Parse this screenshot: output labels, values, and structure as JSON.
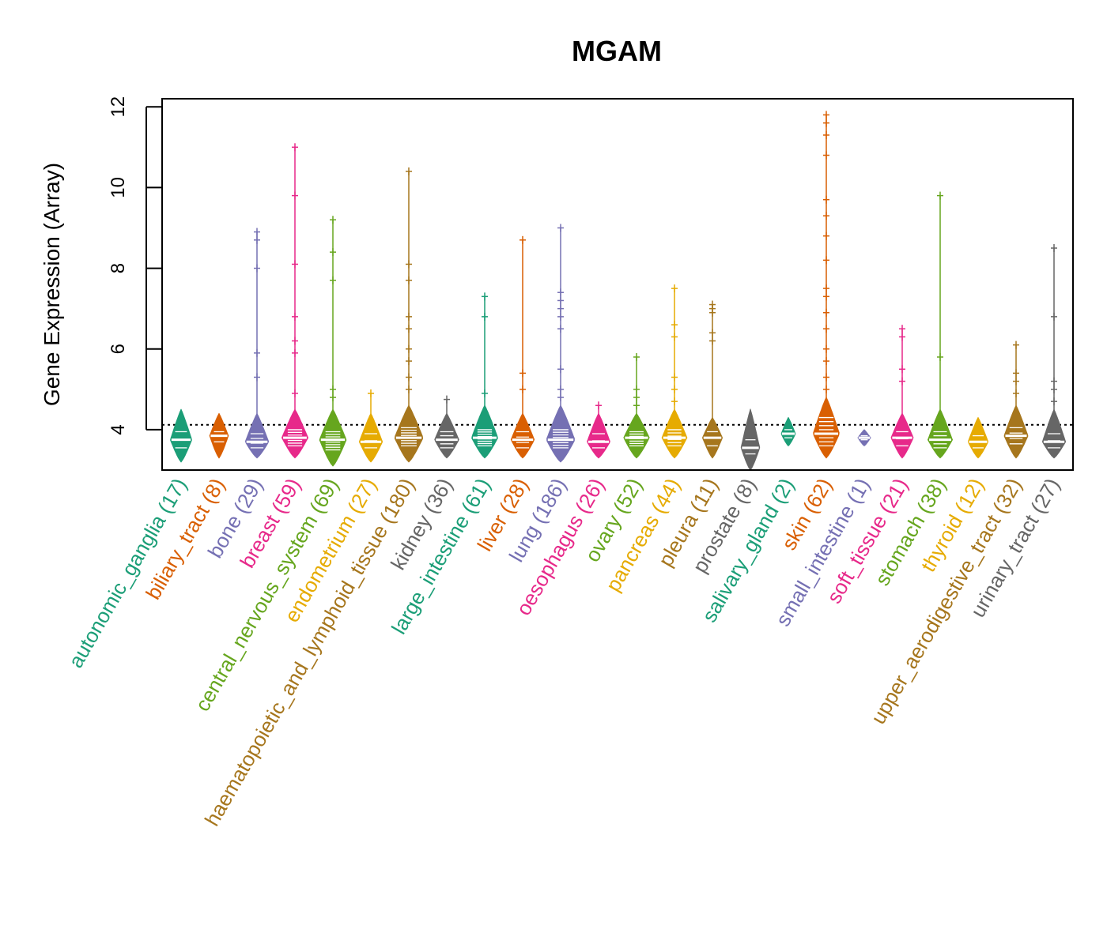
{
  "chart_data": {
    "type": "beeswarm-violin",
    "title": "MGAM",
    "xlabel": "",
    "ylabel": "Gene Expression (Array)",
    "ylim": [
      3.0,
      12.2
    ],
    "yticks": [
      4,
      6,
      8,
      10,
      12
    ],
    "reference_line": 4.12,
    "categories": [
      {
        "name": "autonomic_ganglia",
        "n": 17,
        "label": "autonomic_ganglia (17)",
        "color": "#1b9e77",
        "median": 3.75,
        "q1": 3.55,
        "q3": 3.95,
        "min": 3.2,
        "max": 4.5,
        "outliers": []
      },
      {
        "name": "biliary_tract",
        "n": 8,
        "label": "biliary_tract (8)",
        "color": "#d95f02",
        "median": 3.85,
        "q1": 3.7,
        "q3": 3.95,
        "min": 3.3,
        "max": 4.4,
        "outliers": []
      },
      {
        "name": "bone",
        "n": 29,
        "label": "bone (29)",
        "color": "#7570b3",
        "median": 3.7,
        "q1": 3.55,
        "q3": 3.9,
        "min": 3.3,
        "max": 4.4,
        "outliers": [
          5.3,
          5.9,
          8.0,
          8.7,
          8.9
        ]
      },
      {
        "name": "breast",
        "n": 59,
        "label": "breast (59)",
        "color": "#e7298a",
        "median": 3.8,
        "q1": 3.6,
        "q3": 4.0,
        "min": 3.3,
        "max": 4.5,
        "outliers": [
          4.9,
          5.9,
          6.2,
          6.8,
          8.1,
          9.8,
          11.0
        ]
      },
      {
        "name": "central_nervous_system",
        "n": 69,
        "label": "central_nervous_system (69)",
        "color": "#66a61e",
        "median": 3.75,
        "q1": 3.5,
        "q3": 3.95,
        "min": 3.1,
        "max": 4.5,
        "outliers": [
          4.8,
          5.0,
          7.7,
          8.4,
          9.2
        ]
      },
      {
        "name": "endometrium",
        "n": 27,
        "label": "endometrium (27)",
        "color": "#e6ab02",
        "median": 3.7,
        "q1": 3.55,
        "q3": 3.9,
        "min": 3.2,
        "max": 4.4,
        "outliers": [
          4.9
        ]
      },
      {
        "name": "haematopoietic_and_lymphoid_tissue",
        "n": 180,
        "label": "haematopoietic_and_lymphoid_tissue (180)",
        "color": "#a6761d",
        "median": 3.8,
        "q1": 3.6,
        "q3": 4.05,
        "min": 3.2,
        "max": 4.6,
        "outliers": [
          5.0,
          5.3,
          5.7,
          6.0,
          6.5,
          6.8,
          7.7,
          8.1,
          10.4
        ]
      },
      {
        "name": "kidney",
        "n": 36,
        "label": "kidney (36)",
        "color": "#666666",
        "median": 3.75,
        "q1": 3.55,
        "q3": 3.95,
        "min": 3.3,
        "max": 4.4,
        "outliers": [
          4.75
        ]
      },
      {
        "name": "large_intestine",
        "n": 61,
        "label": "large_intestine (61)",
        "color": "#1b9e77",
        "median": 3.8,
        "q1": 3.6,
        "q3": 4.0,
        "min": 3.3,
        "max": 4.6,
        "outliers": [
          4.9,
          6.8,
          7.3
        ]
      },
      {
        "name": "liver",
        "n": 28,
        "label": "liver (28)",
        "color": "#d95f02",
        "median": 3.75,
        "q1": 3.55,
        "q3": 3.95,
        "min": 3.3,
        "max": 4.4,
        "outliers": [
          5.0,
          5.4,
          8.7
        ]
      },
      {
        "name": "lung",
        "n": 186,
        "label": "lung (186)",
        "color": "#7570b3",
        "median": 3.75,
        "q1": 3.55,
        "q3": 4.0,
        "min": 3.2,
        "max": 4.6,
        "outliers": [
          4.8,
          5.0,
          5.5,
          6.5,
          6.8,
          7.0,
          7.2,
          7.4,
          9.0
        ]
      },
      {
        "name": "oesophagus",
        "n": 26,
        "label": "oesophagus (26)",
        "color": "#e7298a",
        "median": 3.7,
        "q1": 3.55,
        "q3": 3.9,
        "min": 3.3,
        "max": 4.4,
        "outliers": [
          4.6
        ]
      },
      {
        "name": "ovary",
        "n": 52,
        "label": "ovary (52)",
        "color": "#66a61e",
        "median": 3.8,
        "q1": 3.6,
        "q3": 3.95,
        "min": 3.3,
        "max": 4.4,
        "outliers": [
          4.6,
          4.8,
          5.0,
          5.8
        ]
      },
      {
        "name": "pancreas",
        "n": 44,
        "label": "pancreas (44)",
        "color": "#e6ab02",
        "median": 3.8,
        "q1": 3.6,
        "q3": 4.0,
        "min": 3.3,
        "max": 4.5,
        "outliers": [
          4.7,
          5.0,
          5.3,
          6.3,
          6.6,
          7.5
        ]
      },
      {
        "name": "pleura",
        "n": 11,
        "label": "pleura (11)",
        "color": "#a6761d",
        "median": 3.8,
        "q1": 3.6,
        "q3": 3.95,
        "min": 3.3,
        "max": 4.3,
        "outliers": [
          6.2,
          6.4,
          6.9,
          7.0,
          7.1
        ]
      },
      {
        "name": "prostate",
        "n": 8,
        "label": "prostate (8)",
        "color": "#666666",
        "median": 3.55,
        "q1": 3.4,
        "q3": 3.75,
        "min": 3.0,
        "max": 4.5,
        "outliers": []
      },
      {
        "name": "salivary_gland",
        "n": 2,
        "label": "salivary_gland (2)",
        "color": "#1b9e77",
        "median": 3.9,
        "q1": 3.8,
        "q3": 4.0,
        "min": 3.6,
        "max": 4.3,
        "outliers": []
      },
      {
        "name": "skin",
        "n": 62,
        "label": "skin (62)",
        "color": "#d95f02",
        "median": 3.9,
        "q1": 3.6,
        "q3": 4.3,
        "min": 3.3,
        "max": 4.8,
        "outliers": [
          5.0,
          5.3,
          5.7,
          6.0,
          6.5,
          6.9,
          7.3,
          7.5,
          8.2,
          8.8,
          9.3,
          9.7,
          10.8,
          11.3,
          11.6,
          11.8
        ]
      },
      {
        "name": "small_intestine",
        "n": 1,
        "label": "small_intestine (1)",
        "color": "#7570b3",
        "median": 3.8,
        "q1": 3.75,
        "q3": 3.85,
        "min": 3.6,
        "max": 4.0,
        "outliers": []
      },
      {
        "name": "soft_tissue",
        "n": 21,
        "label": "soft_tissue (21)",
        "color": "#e7298a",
        "median": 3.8,
        "q1": 3.6,
        "q3": 3.95,
        "min": 3.3,
        "max": 4.4,
        "outliers": [
          5.2,
          5.5,
          6.3,
          6.5
        ]
      },
      {
        "name": "stomach",
        "n": 38,
        "label": "stomach (38)",
        "color": "#66a61e",
        "median": 3.75,
        "q1": 3.55,
        "q3": 3.95,
        "min": 3.3,
        "max": 4.5,
        "outliers": [
          5.8,
          9.8
        ]
      },
      {
        "name": "thyroid",
        "n": 12,
        "label": "thyroid (12)",
        "color": "#e6ab02",
        "median": 3.7,
        "q1": 3.55,
        "q3": 3.85,
        "min": 3.3,
        "max": 4.3,
        "outliers": []
      },
      {
        "name": "upper_aerodigestive_tract",
        "n": 32,
        "label": "upper_aerodigestive_tract (32)",
        "color": "#a6761d",
        "median": 3.85,
        "q1": 3.65,
        "q3": 4.05,
        "min": 3.3,
        "max": 4.6,
        "outliers": [
          4.9,
          5.2,
          5.4,
          6.1
        ]
      },
      {
        "name": "urinary_tract",
        "n": 27,
        "label": "urinary_tract (27)",
        "color": "#666666",
        "median": 3.7,
        "q1": 3.55,
        "q3": 3.9,
        "min": 3.3,
        "max": 4.5,
        "outliers": [
          4.7,
          5.0,
          5.2,
          6.8,
          8.5
        ]
      }
    ]
  }
}
